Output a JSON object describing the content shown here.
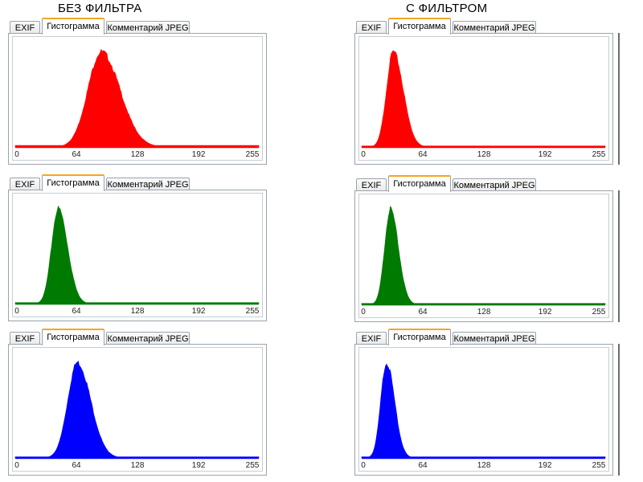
{
  "titles": {
    "left": "БЕЗ ФИЛЬТРА",
    "right": "С ФИЛЬТРОМ"
  },
  "tabs": {
    "exif": "EXIF",
    "histogram": "Гистограмма",
    "comment": "Комментарий JPEG"
  },
  "ticks": [
    "0",
    "64",
    "128",
    "192",
    "255"
  ],
  "colors": {
    "red": "#ff0000",
    "green": "#007a00",
    "blue": "#0000ff",
    "tab_accent": "#f5a623"
  },
  "chart_data": [
    {
      "type": "area",
      "channel": "red",
      "column": "БЕЗ ФИЛЬТРА",
      "xlim": [
        0,
        255
      ],
      "peak_x": 90,
      "spread": 14,
      "skew_right": 1.4,
      "peak_height": 0.92,
      "baseline": 0.015
    },
    {
      "type": "area",
      "channel": "red",
      "column": "С ФИЛЬТРОМ",
      "xlim": [
        0,
        255
      ],
      "peak_x": 33,
      "spread": 7,
      "skew_right": 1.5,
      "peak_height": 0.92,
      "baseline": 0.01
    },
    {
      "type": "area",
      "channel": "green",
      "column": "БЕЗ ФИЛЬТРА",
      "xlim": [
        0,
        255
      ],
      "peak_x": 45,
      "spread": 7,
      "skew_right": 1.4,
      "peak_height": 0.92,
      "baseline": 0.01
    },
    {
      "type": "area",
      "channel": "green",
      "column": "С ФИЛЬТРОМ",
      "xlim": [
        0,
        255
      ],
      "peak_x": 30,
      "spread": 6,
      "skew_right": 1.4,
      "peak_height": 0.92,
      "baseline": 0.01
    },
    {
      "type": "area",
      "channel": "blue",
      "column": "БЕЗ ФИЛЬТРА",
      "xlim": [
        0,
        255
      ],
      "peak_x": 65,
      "spread": 10,
      "skew_right": 1.4,
      "peak_height": 0.92,
      "baseline": 0.01
    },
    {
      "type": "area",
      "channel": "blue",
      "column": "С ФИЛЬТРОМ",
      "xlim": [
        0,
        255
      ],
      "peak_x": 26,
      "spread": 6,
      "skew_right": 1.4,
      "peak_height": 0.92,
      "baseline": 0.01
    }
  ]
}
